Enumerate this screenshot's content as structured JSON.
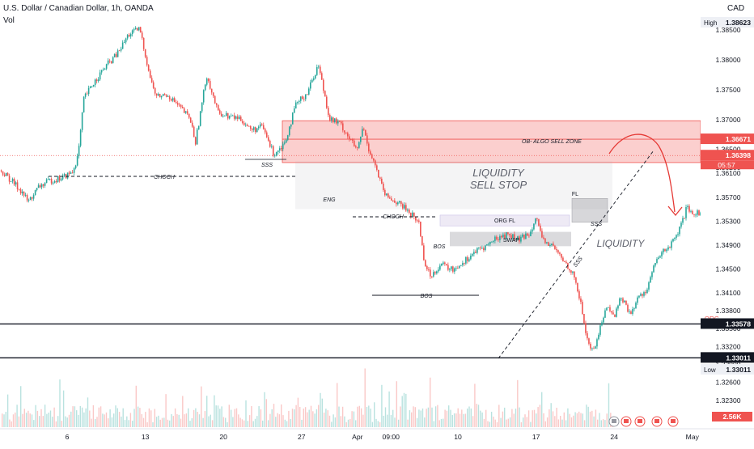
{
  "header": {
    "title": "U.S. Dollar / Canadian Dollar, 1h, OANDA",
    "vol_label": "Vol",
    "currency": "CAD"
  },
  "colors": {
    "up": "#26a69a",
    "down": "#ef5350",
    "zone_red": "#ef5350",
    "zone_grey": "#9e9ea6",
    "axis_text": "#131722",
    "black_line": "#131722"
  },
  "chart_data": {
    "type": "candlestick",
    "title": "U.S. Dollar / Canadian Dollar, 1h, OANDA",
    "y_axis": {
      "ticks": [
        "1.38500",
        "1.38000",
        "1.37500",
        "1.37000",
        "1.36500",
        "1.36100",
        "1.35700",
        "1.35300",
        "1.34900",
        "1.34500",
        "1.34100",
        "1.33800",
        "1.33500",
        "1.33200",
        "1.32900",
        "1.32600",
        "1.32300",
        "1.32000"
      ],
      "ylim": [
        1.319,
        1.388
      ]
    },
    "x_axis": {
      "ticks": [
        {
          "label": "6",
          "day": 6
        },
        {
          "label": "13",
          "day": 13
        },
        {
          "label": "20",
          "day": 20
        },
        {
          "label": "27",
          "day": 27
        },
        {
          "label": "Apr",
          "day": 32
        },
        {
          "label": "09:00",
          "day": 35
        },
        {
          "label": "10",
          "day": 41
        },
        {
          "label": "17",
          "day": 48
        },
        {
          "label": "24",
          "day": 55
        },
        {
          "label": "May",
          "day": 62
        }
      ]
    },
    "price_path": [
      [
        0.0,
        1.3615
      ],
      [
        1.0,
        1.3598
      ],
      [
        2.0,
        1.3578
      ],
      [
        2.5,
        1.3562
      ],
      [
        3.5,
        1.3588
      ],
      [
        4.5,
        1.3598
      ],
      [
        5.5,
        1.3602
      ],
      [
        6.5,
        1.3612
      ],
      [
        7.0,
        1.3642
      ],
      [
        7.5,
        1.3735
      ],
      [
        8.5,
        1.3765
      ],
      [
        9.5,
        1.379
      ],
      [
        10.5,
        1.381
      ],
      [
        11.5,
        1.3842
      ],
      [
        12.5,
        1.3852
      ],
      [
        13.5,
        1.3765
      ],
      [
        14.0,
        1.3738
      ],
      [
        15.0,
        1.3742
      ],
      [
        16.0,
        1.3722
      ],
      [
        17.0,
        1.3702
      ],
      [
        17.5,
        1.3662
      ],
      [
        18.5,
        1.3775
      ],
      [
        19.5,
        1.3712
      ],
      [
        20.5,
        1.3705
      ],
      [
        21.5,
        1.3702
      ],
      [
        22.5,
        1.3682
      ],
      [
        23.5,
        1.3688
      ],
      [
        24.5,
        1.3642
      ],
      [
        25.5,
        1.3662
      ],
      [
        26.5,
        1.3725
      ],
      [
        27.5,
        1.3745
      ],
      [
        28.5,
        1.3792
      ],
      [
        29.5,
        1.3702
      ],
      [
        30.5,
        1.3692
      ],
      [
        31.5,
        1.3662
      ],
      [
        32.0,
        1.3648
      ],
      [
        32.5,
        1.3688
      ],
      [
        33.0,
        1.3652
      ],
      [
        33.5,
        1.3628
      ],
      [
        34.0,
        1.3598
      ],
      [
        34.5,
        1.3572
      ],
      [
        35.5,
        1.3562
      ],
      [
        36.5,
        1.3548
      ],
      [
        37.5,
        1.3528
      ],
      [
        38.0,
        1.3462
      ],
      [
        38.5,
        1.3438
      ],
      [
        39.5,
        1.3458
      ],
      [
        40.5,
        1.3448
      ],
      [
        41.5,
        1.3462
      ],
      [
        42.5,
        1.3478
      ],
      [
        43.5,
        1.3488
      ],
      [
        44.5,
        1.3502
      ],
      [
        45.5,
        1.3508
      ],
      [
        46.5,
        1.3498
      ],
      [
        47.5,
        1.3512
      ],
      [
        48.0,
        1.3542
      ],
      [
        48.5,
        1.3498
      ],
      [
        49.5,
        1.3488
      ],
      [
        50.5,
        1.3462
      ],
      [
        51.0,
        1.3452
      ],
      [
        51.5,
        1.3432
      ],
      [
        52.0,
        1.3392
      ],
      [
        52.5,
        1.3338
      ],
      [
        53.0,
        1.3312
      ],
      [
        53.5,
        1.3332
      ],
      [
        54.0,
        1.3372
      ],
      [
        54.5,
        1.3388
      ],
      [
        55.0,
        1.3368
      ],
      [
        55.5,
        1.3402
      ],
      [
        56.0,
        1.3392
      ],
      [
        56.5,
        1.3372
      ],
      [
        57.0,
        1.3398
      ],
      [
        58.0,
        1.3418
      ],
      [
        58.5,
        1.3452
      ],
      [
        59.0,
        1.3468
      ],
      [
        59.5,
        1.3482
      ],
      [
        60.0,
        1.3488
      ],
      [
        60.5,
        1.3502
      ],
      [
        61.0,
        1.3522
      ],
      [
        61.5,
        1.3552
      ],
      [
        62.0,
        1.3538
      ],
      [
        62.5,
        1.3548
      ],
      [
        63.0,
        1.3532
      ],
      [
        63.5,
        1.3555
      ],
      [
        64.0,
        1.3588
      ],
      [
        64.5,
        1.364
      ]
    ],
    "high_price": "1.38623",
    "low_price": "1.33011",
    "current_price": "1.36398",
    "countdown": "05:57",
    "level_1": "1.36671",
    "org_price": "1.33578",
    "org_label": "ORG",
    "high_label": "High",
    "low_label": "Low",
    "volume_label": "2.56K",
    "partial_tick": "1.36200",
    "zones": [
      {
        "name": "ob-algo-sell-zone",
        "label": "OB- ALGO SELL ZONE",
        "top": 1.3698,
        "bottom": 1.3628
      },
      {
        "name": "liquidity-sell-stop-zone",
        "label_line1": "LIQUIDITY",
        "label_line2": "SELL STOP",
        "top": 1.363,
        "bottom": 1.355
      },
      {
        "name": "org-fl-zone",
        "label": "ORG FL",
        "top": 1.354,
        "bottom": 1.3522
      },
      {
        "name": "swap-zone",
        "label": "SWAP",
        "top": 1.3512,
        "bottom": 1.3488
      },
      {
        "name": "fl-box",
        "label": "FL",
        "top": 1.3568,
        "bottom": 1.3528
      }
    ],
    "annotations": {
      "sss_left": "SSS",
      "choch_left": "CHOCH",
      "eng": "ENG",
      "choch_mid": "CHOCH",
      "bos_small": "BOS",
      "bos_mid": "BOS",
      "fl": "FL",
      "sss_right": "SSS",
      "sss_diag": "SSS",
      "liquidity": "LIQUIDITY"
    }
  }
}
